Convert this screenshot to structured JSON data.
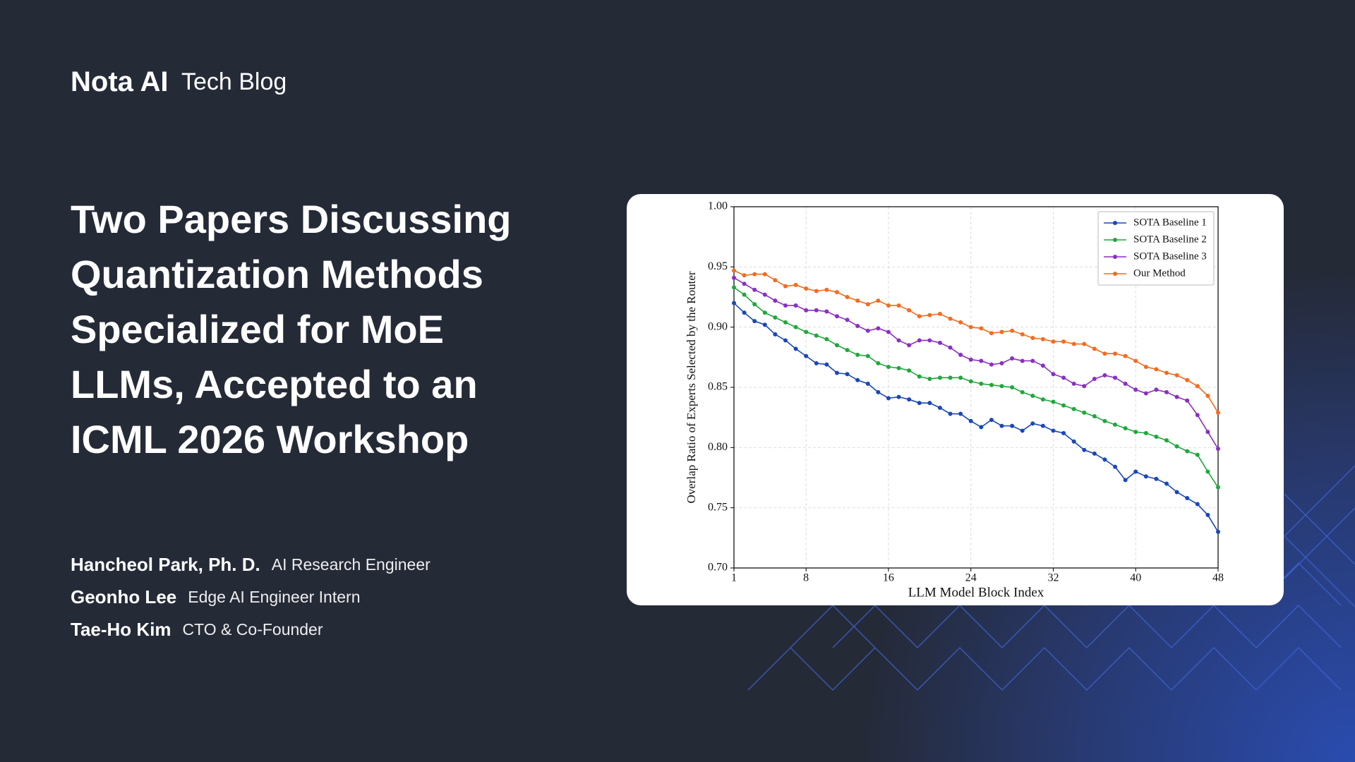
{
  "header": {
    "logo": "Nota AI",
    "blog_name": "Tech Blog"
  },
  "title_lines": [
    "Two Papers Discussing",
    "Quantization Methods",
    "Specialized for MoE",
    "LLMs, Accepted to an",
    "ICML 2026 Workshop"
  ],
  "authors": [
    {
      "name": "Hancheol Park, Ph. D.",
      "role": "AI Research Engineer"
    },
    {
      "name": "Geonho Lee",
      "role": "Edge AI Engineer Intern"
    },
    {
      "name": "Tae-Ho Kim",
      "role": "CTO & Co-Founder"
    }
  ],
  "chart_data": {
    "type": "line",
    "xlabel": "LLM Model Block Index",
    "ylabel": "Overlap Ratio of Experts Selected by the Router",
    "x": [
      1,
      2,
      3,
      4,
      5,
      6,
      7,
      8,
      9,
      10,
      11,
      12,
      13,
      14,
      15,
      16,
      17,
      18,
      19,
      20,
      21,
      22,
      23,
      24,
      25,
      26,
      27,
      28,
      29,
      30,
      31,
      32,
      33,
      34,
      35,
      36,
      37,
      38,
      39,
      40,
      41,
      42,
      43,
      44,
      45,
      46,
      47,
      48
    ],
    "xlim": [
      1,
      48
    ],
    "xticks": [
      1,
      8,
      16,
      24,
      32,
      40,
      48
    ],
    "ylim": [
      0.7,
      1.0
    ],
    "yticks": [
      {
        "value": 0.7,
        "label": "0.70"
      },
      {
        "value": 0.75,
        "label": "0.75"
      },
      {
        "value": 0.8,
        "label": "0.80"
      },
      {
        "value": 0.85,
        "label": "0.85"
      },
      {
        "value": 0.9,
        "label": "0.90"
      },
      {
        "value": 0.95,
        "label": "0.95"
      },
      {
        "value": 1.0,
        "label": "1.00"
      }
    ],
    "grid": true,
    "markers": true,
    "legend": "upper right",
    "series": [
      {
        "name": "SOTA Baseline 1",
        "color": "#1a47b8",
        "values": [
          0.92,
          0.912,
          0.905,
          0.902,
          0.894,
          0.889,
          0.882,
          0.876,
          0.87,
          0.869,
          0.862,
          0.861,
          0.856,
          0.853,
          0.846,
          0.841,
          0.842,
          0.84,
          0.837,
          0.837,
          0.833,
          0.828,
          0.828,
          0.822,
          0.817,
          0.823,
          0.818,
          0.818,
          0.814,
          0.82,
          0.818,
          0.814,
          0.812,
          0.805,
          0.798,
          0.795,
          0.79,
          0.784,
          0.773,
          0.78,
          0.776,
          0.774,
          0.77,
          0.763,
          0.758,
          0.753,
          0.744,
          0.73
        ]
      },
      {
        "name": "SOTA Baseline 2",
        "color": "#1fa83c",
        "values": [
          0.933,
          0.927,
          0.919,
          0.912,
          0.908,
          0.904,
          0.9,
          0.896,
          0.893,
          0.89,
          0.885,
          0.881,
          0.877,
          0.876,
          0.87,
          0.867,
          0.866,
          0.864,
          0.859,
          0.857,
          0.858,
          0.858,
          0.858,
          0.855,
          0.853,
          0.852,
          0.851,
          0.85,
          0.846,
          0.843,
          0.84,
          0.838,
          0.835,
          0.832,
          0.829,
          0.826,
          0.822,
          0.819,
          0.816,
          0.813,
          0.812,
          0.809,
          0.806,
          0.801,
          0.797,
          0.794,
          0.78,
          0.767
        ]
      },
      {
        "name": "SOTA Baseline 3",
        "color": "#8b2fc2",
        "values": [
          0.941,
          0.936,
          0.931,
          0.927,
          0.922,
          0.918,
          0.918,
          0.914,
          0.914,
          0.913,
          0.909,
          0.906,
          0.901,
          0.897,
          0.899,
          0.896,
          0.889,
          0.885,
          0.889,
          0.889,
          0.887,
          0.883,
          0.877,
          0.873,
          0.872,
          0.869,
          0.87,
          0.874,
          0.872,
          0.872,
          0.868,
          0.861,
          0.858,
          0.853,
          0.851,
          0.857,
          0.86,
          0.858,
          0.853,
          0.848,
          0.845,
          0.848,
          0.846,
          0.842,
          0.839,
          0.827,
          0.813,
          0.799
        ]
      },
      {
        "name": "Our Method",
        "color": "#f56b1f",
        "values": [
          0.947,
          0.943,
          0.944,
          0.944,
          0.939,
          0.934,
          0.935,
          0.932,
          0.93,
          0.931,
          0.929,
          0.925,
          0.922,
          0.919,
          0.922,
          0.918,
          0.918,
          0.914,
          0.909,
          0.91,
          0.911,
          0.907,
          0.904,
          0.9,
          0.899,
          0.895,
          0.896,
          0.897,
          0.894,
          0.891,
          0.89,
          0.888,
          0.888,
          0.886,
          0.886,
          0.882,
          0.878,
          0.878,
          0.876,
          0.872,
          0.867,
          0.865,
          0.862,
          0.86,
          0.856,
          0.851,
          0.843,
          0.829
        ]
      }
    ]
  }
}
